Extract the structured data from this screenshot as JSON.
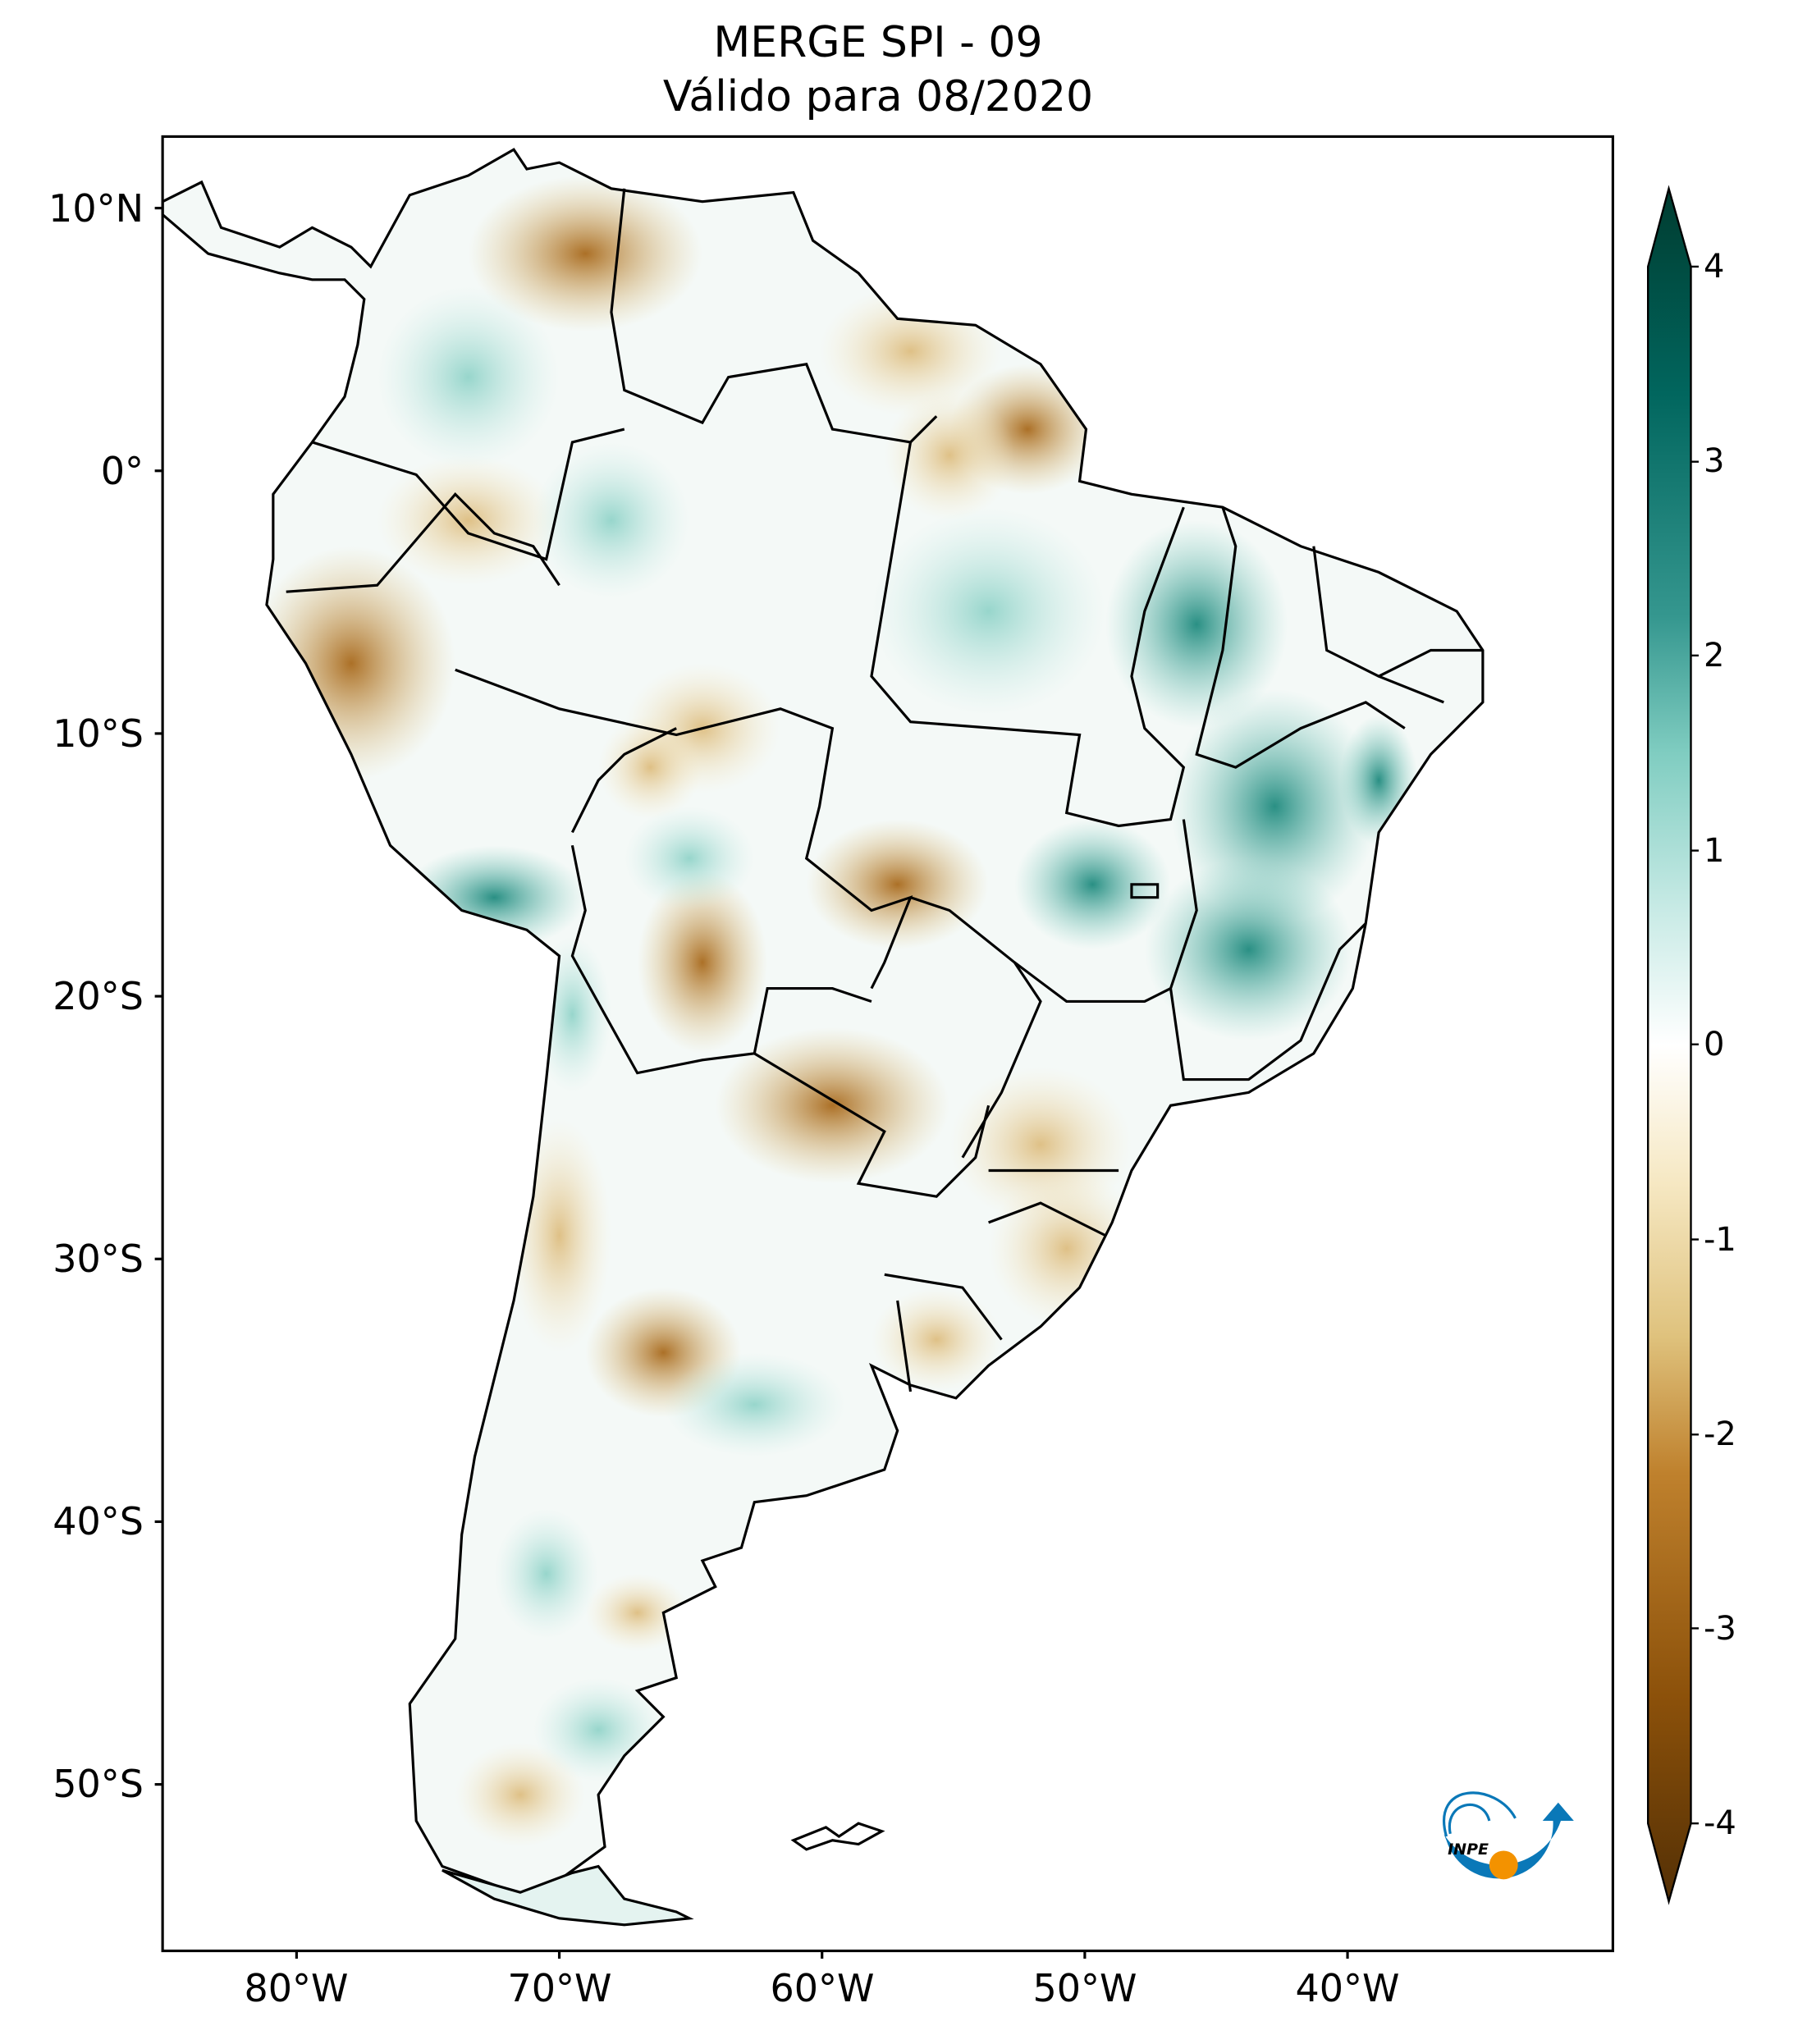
{
  "title": "MERGE   SPI - 09",
  "subtitle": "Válido para 08/2020",
  "lat_labels": [
    "10°N",
    "0°",
    "10°S",
    "20°S",
    "30°S",
    "40°S",
    "50°S"
  ],
  "lon_labels": [
    "80°W",
    "70°W",
    "60°W",
    "50°W",
    "40°W"
  ],
  "colorbar": {
    "ticks": [
      "4",
      "3",
      "2",
      "1",
      "0",
      "-1",
      "-2",
      "-3",
      "-4"
    ],
    "range": [
      -4,
      4
    ],
    "colors": [
      "#543005",
      "#8c510a",
      "#bf812d",
      "#dfc27d",
      "#f6e8c3",
      "#ffffff",
      "#c7eae5",
      "#80cdc1",
      "#35978f",
      "#01665e",
      "#003c30"
    ]
  },
  "logo": {
    "text": "INPE"
  }
}
